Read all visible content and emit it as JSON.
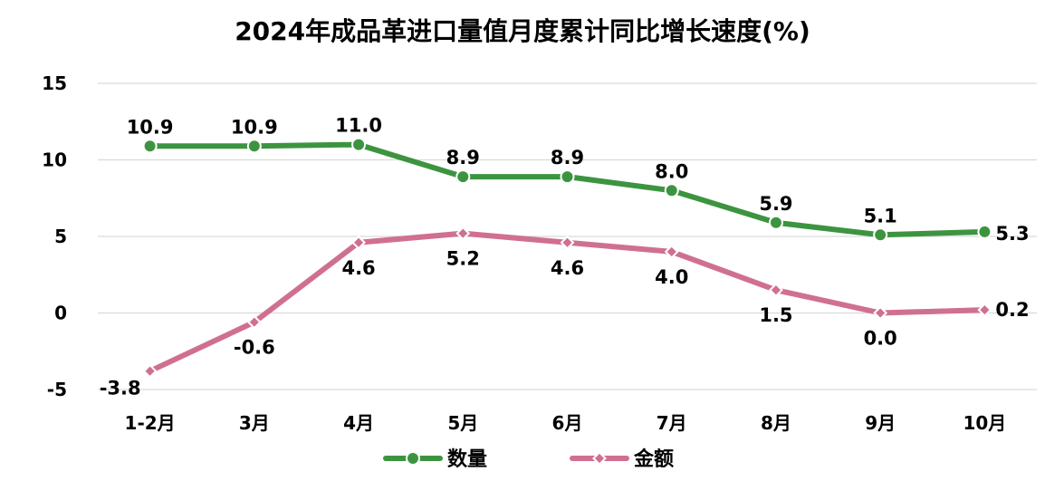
{
  "chart_data": {
    "type": "line",
    "title": "2024年成品革进口量值月度累计同比增长速度(%)",
    "categories": [
      "1-2月",
      "3月",
      "4月",
      "5月",
      "6月",
      "7月",
      "8月",
      "9月",
      "10月"
    ],
    "ylim": [
      -5,
      15
    ],
    "yticks": [
      15,
      10,
      5,
      0,
      -5
    ],
    "grid": true,
    "legend_position": "bottom",
    "series": [
      {
        "name": "数量",
        "values": [
          10.9,
          10.9,
          11.0,
          8.9,
          8.9,
          8.0,
          5.9,
          5.1,
          5.3
        ],
        "labels": [
          "10.9",
          "10.9",
          "11.0",
          "8.9",
          "8.9",
          "8.0",
          "5.9",
          "5.1",
          "5.3"
        ],
        "color": "#3d9440",
        "marker": "circle"
      },
      {
        "name": "金额",
        "values": [
          -3.8,
          -0.6,
          4.6,
          5.2,
          4.6,
          4.0,
          1.5,
          0.0,
          0.2
        ],
        "labels": [
          "-3.8",
          "-0.6",
          "4.6",
          "5.2",
          "4.6",
          "4.0",
          "1.5",
          "0.0",
          "0.2"
        ],
        "color": "#d07090",
        "marker": "diamond"
      }
    ]
  }
}
